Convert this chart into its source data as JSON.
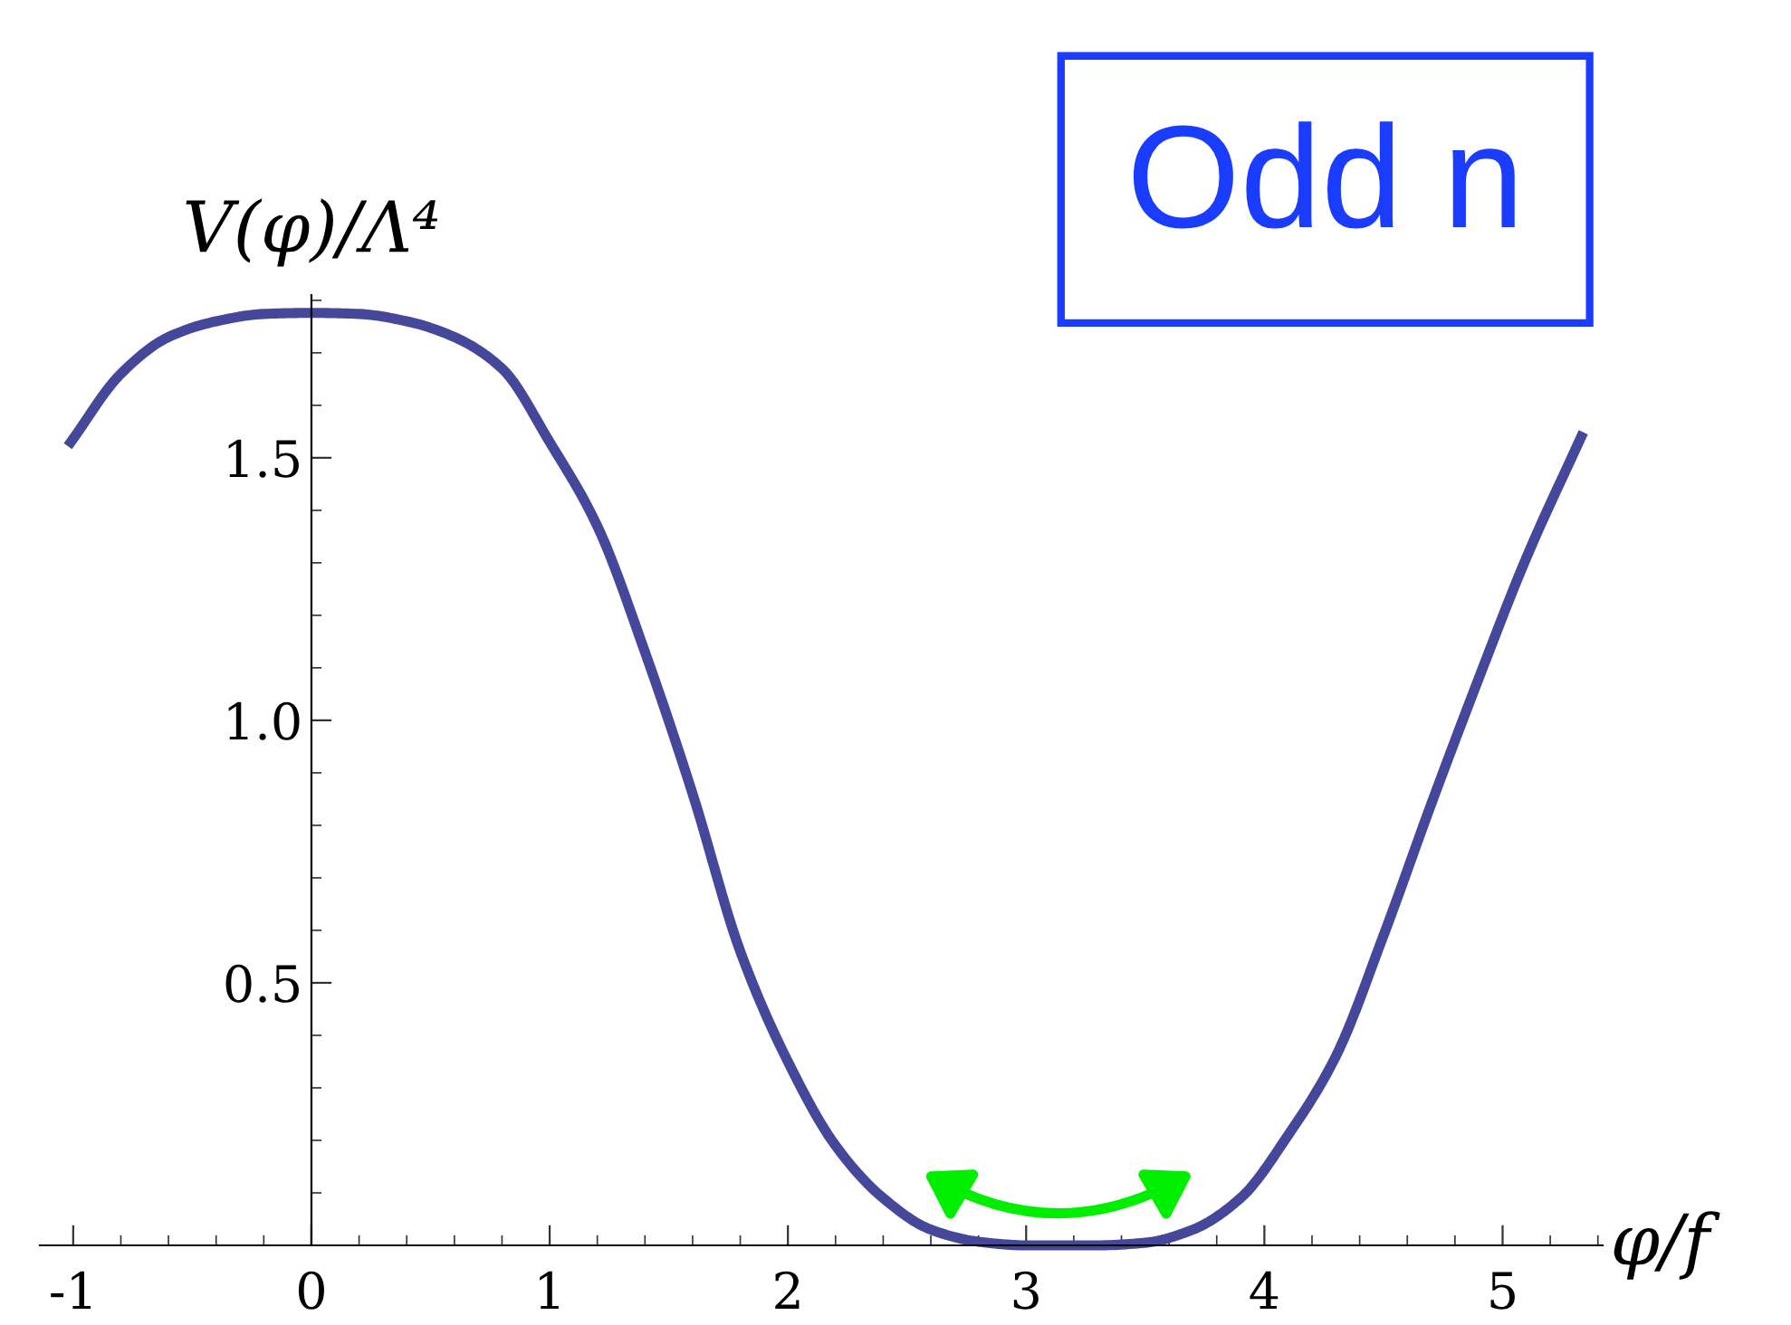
{
  "chart_data": {
    "type": "line",
    "ylabel": "V(φ)/Λ⁴",
    "xlabel": "φ/f",
    "annotations": [
      "Odd n"
    ],
    "x": [
      -1.01,
      -0.8,
      -0.6,
      -0.4,
      -0.2,
      0,
      0.2,
      0.4,
      0.6,
      0.8,
      1.0,
      1.2,
      1.4,
      1.6,
      1.8,
      2.0,
      2.2,
      2.4,
      2.6,
      2.8,
      3.0,
      3.14,
      3.3,
      3.5,
      3.7,
      3.9,
      4.1,
      4.3,
      4.5,
      4.7,
      4.9,
      5.1,
      5.33
    ],
    "series": [
      {
        "color": "#45479a",
        "values": [
          1.53,
          1.66,
          1.73,
          1.76,
          1.774,
          1.776,
          1.774,
          1.76,
          1.73,
          1.67,
          1.53,
          1.37,
          1.13,
          0.86,
          0.56,
          0.35,
          0.19,
          0.09,
          0.03,
          0.007,
          0.0,
          0.0,
          0.0,
          0.005,
          0.03,
          0.09,
          0.21,
          0.36,
          0.59,
          0.84,
          1.08,
          1.31,
          1.54
        ]
      }
    ],
    "xlim": [
      -1.14,
      5.42
    ],
    "ylim": [
      0,
      1.81
    ],
    "xticks": [
      -1,
      0,
      1,
      2,
      3,
      4,
      5
    ],
    "yticks": [
      {
        "value": 0.5,
        "label": "0.5"
      },
      {
        "value": 1.0,
        "label": "1.0"
      },
      {
        "value": 1.5,
        "label": "1.5"
      }
    ],
    "grid": false,
    "legend": false,
    "marker": "none",
    "line_style": "solid"
  }
}
